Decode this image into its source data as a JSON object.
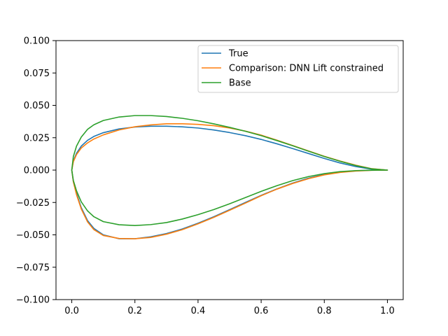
{
  "chart_data": {
    "type": "line",
    "title": "",
    "xlabel": "",
    "ylabel": "",
    "xlim": [
      -0.05,
      1.05
    ],
    "ylim": [
      -0.1,
      0.1
    ],
    "grid": false,
    "legend": "top-right",
    "x_ticks": [
      "0.0",
      "0.2",
      "0.4",
      "0.6",
      "0.8",
      "1.0"
    ],
    "y_ticks": [
      "−0.100",
      "−0.075",
      "−0.050",
      "−0.025",
      "0.000",
      "0.025",
      "0.050",
      "0.075",
      "0.100"
    ],
    "series": [
      {
        "name": "True",
        "color": "#1f77b4",
        "x": [
          1.0,
          0.95,
          0.9,
          0.85,
          0.8,
          0.75,
          0.7,
          0.65,
          0.6,
          0.55,
          0.5,
          0.45,
          0.4,
          0.35,
          0.3,
          0.25,
          0.2,
          0.15,
          0.1,
          0.07,
          0.05,
          0.03,
          0.015,
          0.005,
          0.0,
          0.005,
          0.015,
          0.03,
          0.05,
          0.07,
          0.1,
          0.15,
          0.2,
          0.25,
          0.3,
          0.35,
          0.4,
          0.45,
          0.5,
          0.55,
          0.6,
          0.65,
          0.7,
          0.75,
          0.8,
          0.85,
          0.9,
          0.95,
          1.0
        ],
        "y": [
          0.0,
          0.0007,
          0.0027,
          0.0055,
          0.009,
          0.0128,
          0.0166,
          0.0203,
          0.0237,
          0.0266,
          0.029,
          0.031,
          0.0325,
          0.0334,
          0.0339,
          0.0339,
          0.0333,
          0.0318,
          0.0289,
          0.026,
          0.023,
          0.0185,
          0.013,
          0.007,
          0.0,
          -0.009,
          -0.018,
          -0.029,
          -0.039,
          -0.045,
          -0.05,
          -0.053,
          -0.053,
          -0.0515,
          -0.049,
          -0.0455,
          -0.041,
          -0.036,
          -0.0305,
          -0.025,
          -0.0195,
          -0.0145,
          -0.01,
          -0.0062,
          -0.0033,
          -0.0015,
          -0.0005,
          -0.0001,
          0.0
        ]
      },
      {
        "name": "Comparison: DNN Lift constrained",
        "color": "#ff7f0e",
        "x": [
          1.0,
          0.95,
          0.9,
          0.85,
          0.8,
          0.75,
          0.7,
          0.65,
          0.6,
          0.55,
          0.5,
          0.45,
          0.4,
          0.35,
          0.3,
          0.25,
          0.2,
          0.15,
          0.1,
          0.07,
          0.05,
          0.03,
          0.015,
          0.005,
          0.0,
          0.005,
          0.015,
          0.03,
          0.05,
          0.07,
          0.1,
          0.15,
          0.2,
          0.25,
          0.3,
          0.35,
          0.4,
          0.45,
          0.5,
          0.55,
          0.6,
          0.65,
          0.7,
          0.75,
          0.8,
          0.85,
          0.9,
          0.95,
          1.0
        ],
        "y": [
          0.0,
          0.0011,
          0.0038,
          0.007,
          0.0107,
          0.0148,
          0.019,
          0.0231,
          0.027,
          0.0301,
          0.0325,
          0.0343,
          0.0353,
          0.0358,
          0.0358,
          0.0349,
          0.0335,
          0.031,
          0.0272,
          0.024,
          0.021,
          0.017,
          0.012,
          0.0065,
          0.0,
          -0.009,
          -0.019,
          -0.03,
          -0.04,
          -0.046,
          -0.0505,
          -0.0528,
          -0.053,
          -0.052,
          -0.0495,
          -0.046,
          -0.0415,
          -0.0365,
          -0.031,
          -0.0255,
          -0.0198,
          -0.0147,
          -0.0103,
          -0.0066,
          -0.0037,
          -0.0018,
          -0.0007,
          -0.0002,
          0.0
        ]
      },
      {
        "name": "Base",
        "color": "#2ca02c",
        "x": [
          1.0,
          0.95,
          0.9,
          0.85,
          0.8,
          0.75,
          0.7,
          0.65,
          0.6,
          0.55,
          0.5,
          0.45,
          0.4,
          0.35,
          0.3,
          0.25,
          0.2,
          0.15,
          0.1,
          0.07,
          0.05,
          0.03,
          0.015,
          0.005,
          0.0,
          0.005,
          0.015,
          0.03,
          0.05,
          0.07,
          0.1,
          0.15,
          0.2,
          0.25,
          0.3,
          0.35,
          0.4,
          0.45,
          0.5,
          0.55,
          0.6,
          0.65,
          0.7,
          0.75,
          0.8,
          0.85,
          0.9,
          0.95,
          1.0
        ],
        "y": [
          0.0,
          0.001,
          0.0035,
          0.0068,
          0.0105,
          0.0146,
          0.0188,
          0.0228,
          0.0266,
          0.03,
          0.033,
          0.0357,
          0.0381,
          0.04,
          0.0414,
          0.0421,
          0.0421,
          0.041,
          0.0383,
          0.035,
          0.0315,
          0.0255,
          0.0185,
          0.0105,
          0.0,
          -0.008,
          -0.016,
          -0.0245,
          -0.0315,
          -0.036,
          -0.0398,
          -0.0422,
          -0.0428,
          -0.0421,
          -0.0405,
          -0.0378,
          -0.0344,
          -0.0305,
          -0.026,
          -0.0212,
          -0.0164,
          -0.012,
          -0.0081,
          -0.005,
          -0.0027,
          -0.0012,
          -0.0004,
          -0.0001,
          0.0
        ]
      }
    ]
  }
}
